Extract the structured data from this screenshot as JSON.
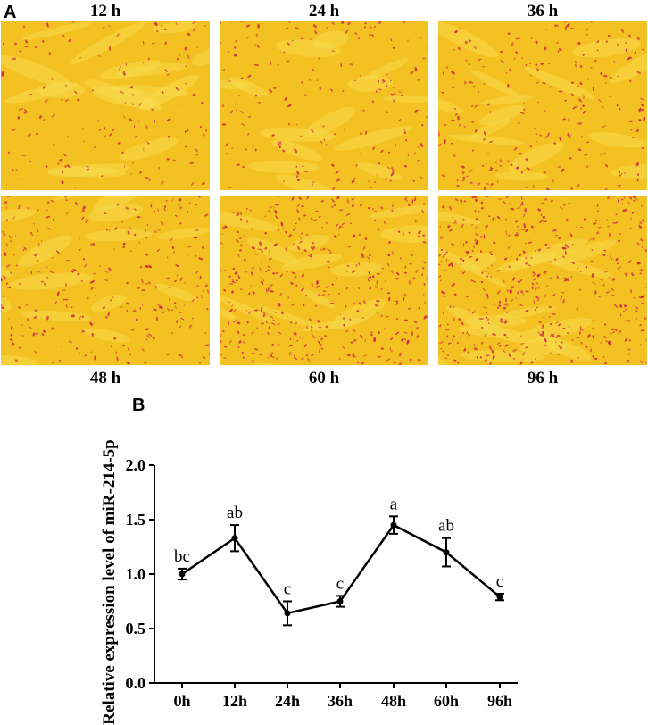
{
  "panel_a": {
    "letter": "A",
    "tiles": [
      {
        "label": "12 h",
        "density": 0.35
      },
      {
        "label": "24 h",
        "density": 0.45
      },
      {
        "label": "36 h",
        "density": 0.55
      },
      {
        "label": "48 h",
        "density": 0.65
      },
      {
        "label": "60 h",
        "density": 1.0
      },
      {
        "label": "96 h",
        "density": 1.15
      }
    ]
  },
  "panel_b": {
    "letter": "B"
  },
  "chart_data": {
    "type": "line",
    "title": "",
    "xlabel": "",
    "ylabel": "Relative expression level of miR-214-5p",
    "categories": [
      "0h",
      "12h",
      "24h",
      "36h",
      "48h",
      "60h",
      "96h"
    ],
    "values": [
      1.0,
      1.33,
      0.64,
      0.75,
      1.45,
      1.2,
      0.79
    ],
    "errors": [
      0.05,
      0.12,
      0.11,
      0.05,
      0.08,
      0.13,
      0.03
    ],
    "annotations": [
      "bc",
      "ab",
      "c",
      "c",
      "a",
      "ab",
      "c"
    ],
    "ylim": [
      0.0,
      2.0
    ],
    "yticks": [
      "0.0",
      "0.5",
      "1.0",
      "1.5",
      "2.0"
    ],
    "grid": false,
    "line_color": "#000000",
    "tile_colors": {
      "background": "#f3c222",
      "cell": "#cc2244"
    }
  }
}
